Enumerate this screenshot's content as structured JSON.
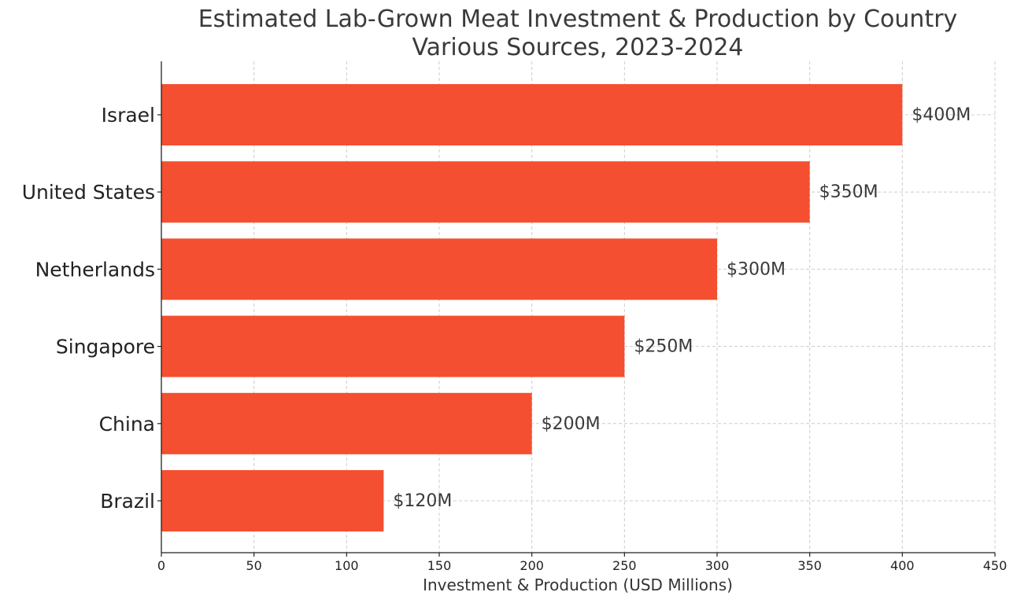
{
  "chart_data": {
    "type": "bar",
    "orientation": "horizontal",
    "title": "Estimated Lab-Grown Meat Investment & Production by Country",
    "subtitle": "Various Sources, 2023-2024",
    "xlabel": "Investment & Production (USD Millions)",
    "ylabel": "",
    "categories": [
      "Israel",
      "United States",
      "Netherlands",
      "Singapore",
      "China",
      "Brazil"
    ],
    "values": [
      400,
      350,
      300,
      250,
      200,
      120
    ],
    "data_labels": [
      "$400M",
      "$350M",
      "$300M",
      "$250M",
      "$200M",
      "$120M"
    ],
    "xlim": [
      0,
      450
    ],
    "xticks": [
      0,
      50,
      100,
      150,
      200,
      250,
      300,
      350,
      400,
      450
    ],
    "xtick_labels": [
      "0",
      "50",
      "100",
      "150",
      "200",
      "250",
      "300",
      "350",
      "400",
      "450"
    ],
    "grid": true,
    "bar_color": "#f44f30"
  }
}
